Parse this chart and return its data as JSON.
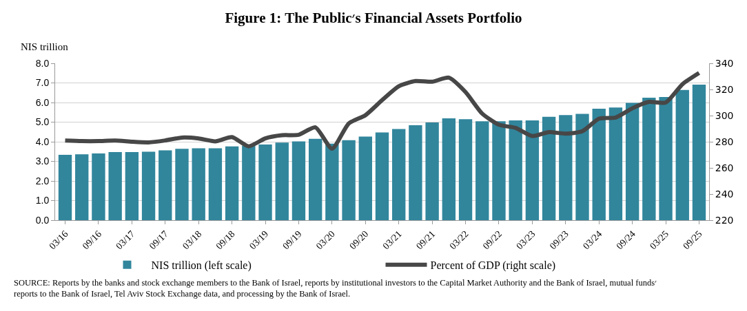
{
  "chart_data": {
    "type": "bar",
    "title": "Figure 1: The Public׳s Financial Assets Portfolio",
    "ylabel": "NIS trillion",
    "categories": [
      "03/16",
      null,
      "09/16",
      null,
      "03/17",
      null,
      "09/17",
      null,
      "03/18",
      null,
      "09/18",
      null,
      "03/19",
      null,
      "09/19",
      null,
      "03/20",
      null,
      "09/20",
      null,
      "03/21",
      null,
      "09/21",
      null,
      "03/22",
      null,
      "09/22",
      null,
      "03/23",
      null,
      "09/23",
      null,
      "03/24",
      null,
      "09/24",
      null,
      "03/25",
      null,
      "09/25"
    ],
    "series": [
      {
        "name": "NIS trillion (left scale)",
        "color": "#31869c",
        "values": [
          3.33,
          3.36,
          3.4,
          3.47,
          3.47,
          3.49,
          3.56,
          3.64,
          3.67,
          3.67,
          3.76,
          3.8,
          3.86,
          3.96,
          4.02,
          4.15,
          3.9,
          4.08,
          4.26,
          4.47,
          4.65,
          4.84,
          4.98,
          5.19,
          5.15,
          5.04,
          5.04,
          5.09,
          5.09,
          5.27,
          5.36,
          5.42,
          5.68,
          5.75,
          5.98,
          6.25,
          6.28,
          6.64,
          6.91
        ]
      },
      {
        "name": "Percent of GDP (right scale)",
        "type": "line",
        "axis": "y2",
        "color": "#474747",
        "values": [
          280.9,
          280.5,
          280.5,
          280.9,
          280.0,
          279.5,
          281.0,
          283.2,
          282.5,
          280.3,
          283.5,
          276.5,
          282.6,
          285.0,
          285.3,
          291.0,
          274.7,
          294.0,
          300.3,
          311.8,
          322.4,
          326.4,
          325.9,
          329.0,
          318.0,
          301.5,
          293.0,
          290.6,
          284.4,
          287.4,
          286.2,
          288.0,
          297.6,
          298.5,
          305.6,
          310.5,
          310.0,
          324.0,
          332.6
        ]
      }
    ],
    "ylim": [
      0,
      8
    ],
    "yticks": [
      {
        "value": 0,
        "label": "0.0"
      },
      {
        "value": 1,
        "label": "1.0"
      },
      {
        "value": 2,
        "label": "2.0"
      },
      {
        "value": 3,
        "label": "3.0"
      },
      {
        "value": 4,
        "label": "4.0"
      },
      {
        "value": 5,
        "label": "5.0"
      },
      {
        "value": 6,
        "label": "6.0"
      },
      {
        "value": 7,
        "label": "7.0"
      },
      {
        "value": 8,
        "label": "8.0"
      }
    ],
    "y2lim": [
      220,
      340
    ],
    "y2ticks": [
      220,
      240,
      260,
      280,
      300,
      320,
      340
    ],
    "grid": "y",
    "legend": "bottom",
    "marker": "none",
    "line_style": "solid",
    "annotations": [
      "SOURCE: Reports by the banks and stock exchange members to the Bank of Israel, reports by institutional investors to the Capital Market Authority and the Bank of Israel, mutual funds׳ reports to the Bank of Israel, Tel Aviv Stock Exchange data, and processing by the Bank of Israel."
    ]
  }
}
